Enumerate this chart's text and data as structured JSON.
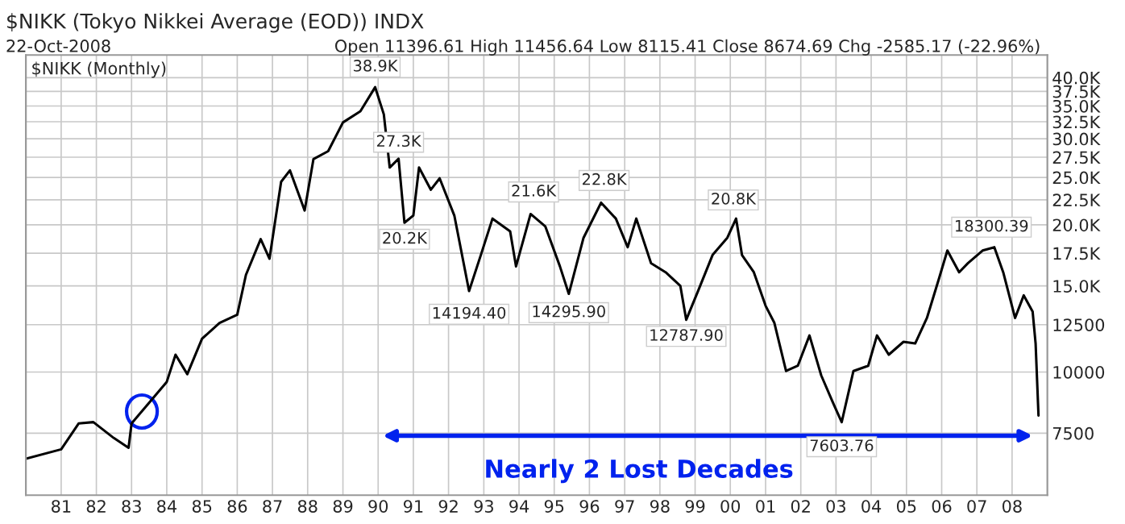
{
  "chart_data": {
    "type": "line",
    "title": "$NIKK (Tokyo Nikkei Average (EOD)) INDX",
    "subtitle": "22-Oct-2008",
    "x": [
      "1980-01",
      "1981-01",
      "1981-07",
      "1981-12",
      "1982-07",
      "1982-12",
      "1983-01",
      "1983-07",
      "1984-01",
      "1984-04",
      "1984-08",
      "1985-01",
      "1985-07",
      "1986-01",
      "1986-04",
      "1986-09",
      "1986-12",
      "1987-04",
      "1987-07",
      "1987-12",
      "1988-03",
      "1988-08",
      "1989-01",
      "1989-07",
      "1989-12",
      "1990-03",
      "1990-05",
      "1990-08",
      "1990-10",
      "1991-01",
      "1991-03",
      "1991-07",
      "1991-10",
      "1992-03",
      "1992-08",
      "1992-12",
      "1993-04",
      "1993-10",
      "1993-12",
      "1994-05",
      "1994-10",
      "1995-03",
      "1995-06",
      "1995-11",
      "1996-05",
      "1996-10",
      "1997-02",
      "1997-05",
      "1997-10",
      "1998-03",
      "1998-08",
      "1998-10",
      "1999-02",
      "1999-07",
      "1999-12",
      "2000-03",
      "2000-05",
      "2000-09",
      "2001-01",
      "2001-04",
      "2001-08",
      "2001-12",
      "2002-04",
      "2002-08",
      "2002-12",
      "2003-03",
      "2003-07",
      "2003-12",
      "2004-03",
      "2004-07",
      "2004-12",
      "2005-04",
      "2005-08",
      "2005-12",
      "2006-03",
      "2006-07",
      "2006-10",
      "2007-03",
      "2007-07",
      "2007-10",
      "2008-02",
      "2008-05",
      "2008-08",
      "2008-09",
      "2008-10"
    ],
    "series": [
      {
        "color": "#000000",
        "values": [
          6650,
          6950,
          7850,
          7900,
          7330,
          7000,
          7850,
          8650,
          9550,
          10850,
          9900,
          11700,
          12600,
          13100,
          15800,
          18700,
          17050,
          24500,
          25850,
          21400,
          27250,
          28300,
          32400,
          34150,
          38250,
          33650,
          26200,
          27300,
          20200,
          20900,
          26200,
          23600,
          24900,
          20900,
          14650,
          17350,
          20600,
          19400,
          16450,
          21050,
          19850,
          16450,
          14450,
          18820,
          22200,
          20600,
          18000,
          20600,
          16700,
          16000,
          15000,
          12790,
          14650,
          17350,
          18820,
          20600,
          17350,
          16000,
          13660,
          12620,
          10050,
          10300,
          11880,
          9840,
          8650,
          7900,
          10050,
          10300,
          11880,
          10850,
          11530,
          11440,
          12900,
          15460,
          17720,
          16000,
          16700,
          17720,
          18000,
          16000,
          12900,
          14350,
          13300,
          11440,
          8150
        ]
      }
    ],
    "xlim": [
      "1980-01",
      "2009-01"
    ],
    "xticks": [
      {
        "value": "1981-01",
        "label": "81"
      },
      {
        "value": "1982-01",
        "label": "82"
      },
      {
        "value": "1983-01",
        "label": "83"
      },
      {
        "value": "1984-01",
        "label": "84"
      },
      {
        "value": "1985-01",
        "label": "85"
      },
      {
        "value": "1986-01",
        "label": "86"
      },
      {
        "value": "1987-01",
        "label": "87"
      },
      {
        "value": "1988-01",
        "label": "88"
      },
      {
        "value": "1989-01",
        "label": "89"
      },
      {
        "value": "1990-01",
        "label": "90"
      },
      {
        "value": "1991-01",
        "label": "91"
      },
      {
        "value": "1992-01",
        "label": "92"
      },
      {
        "value": "1993-01",
        "label": "93"
      },
      {
        "value": "1994-01",
        "label": "94"
      },
      {
        "value": "1995-01",
        "label": "95"
      },
      {
        "value": "1996-01",
        "label": "96"
      },
      {
        "value": "1997-01",
        "label": "97"
      },
      {
        "value": "1998-01",
        "label": "98"
      },
      {
        "value": "1999-01",
        "label": "99"
      },
      {
        "value": "2000-01",
        "label": "00"
      },
      {
        "value": "2001-01",
        "label": "01"
      },
      {
        "value": "2002-01",
        "label": "02"
      },
      {
        "value": "2003-01",
        "label": "03"
      },
      {
        "value": "2004-01",
        "label": "04"
      },
      {
        "value": "2005-01",
        "label": "05"
      },
      {
        "value": "2006-01",
        "label": "06"
      },
      {
        "value": "2007-01",
        "label": "07"
      },
      {
        "value": "2008-01",
        "label": "08"
      }
    ],
    "log": true,
    "ylim": [
      5600,
      44500
    ],
    "yticks": [
      7500,
      10000,
      12500,
      {
        "value": 15000,
        "label": "15.0K"
      },
      {
        "value": 17500,
        "label": "17.5K"
      },
      {
        "value": 20000,
        "label": "20.0K"
      },
      {
        "value": 22500,
        "label": "22.5K"
      },
      {
        "value": 25000,
        "label": "25.0K"
      },
      {
        "value": 27500,
        "label": "27.5K"
      },
      {
        "value": 30000,
        "label": "30.0K"
      },
      {
        "value": 32500,
        "label": "32.5K"
      },
      {
        "value": 35000,
        "label": "35.0K"
      },
      {
        "value": 37500,
        "label": "37.5K"
      },
      {
        "value": 40000,
        "label": "40.0K"
      }
    ],
    "grid": true,
    "annotations": [
      "Open 11396.61 High 11456.64 Low 8115.41 Close 8674.69 Chg -2585.17 (-22.96%)",
      "$NIKK (Monthly)",
      "Nearly 2 Lost Decades",
      {
        "text": "38.9K",
        "x": "1989-12",
        "y": 38900
      },
      {
        "text": "27.3K",
        "x": "1990-08",
        "y": 27300
      },
      {
        "text": "20.2K",
        "x": "1990-10",
        "y": 20200
      },
      {
        "text": "14194.40",
        "x": "1992-08",
        "y": 14194.4
      },
      {
        "text": "21.6K",
        "x": "1994-06",
        "y": 21600
      },
      {
        "text": "14295.90",
        "x": "1995-06",
        "y": 14295.9
      },
      {
        "text": "22.8K",
        "x": "1996-06",
        "y": 22800
      },
      {
        "text": "12787.90",
        "x": "1998-10",
        "y": 12787.9
      },
      {
        "text": "20.8K",
        "x": "2000-02",
        "y": 20800
      },
      {
        "text": "7603.76",
        "x": "2003-03",
        "y": 7603.76
      },
      {
        "text": "18300.39",
        "x": "2007-06",
        "y": 18300.39
      }
    ]
  }
}
